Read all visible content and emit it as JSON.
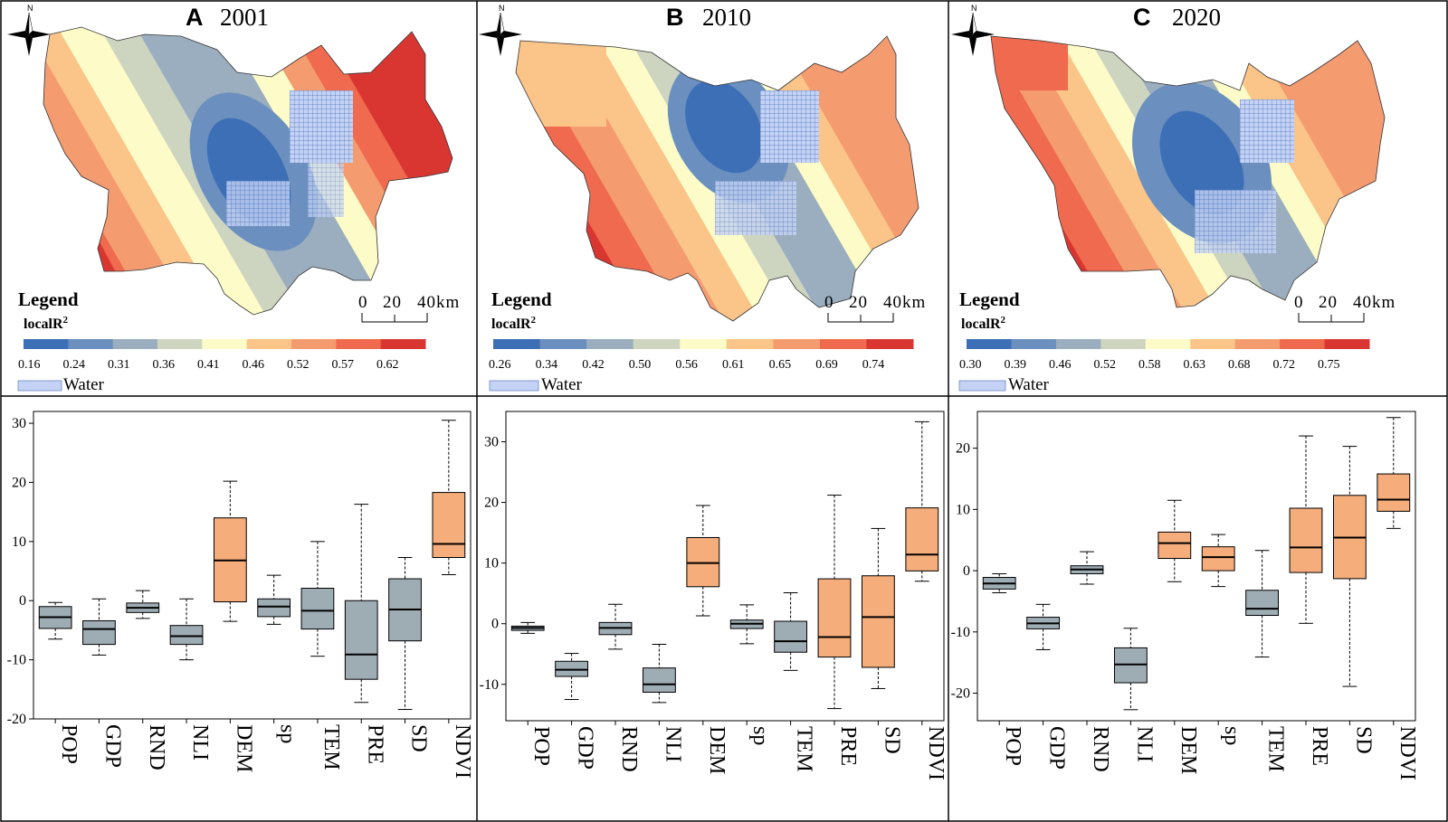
{
  "ramp_colors": [
    "#3d6fb7",
    "#6b8fbe",
    "#9aaebf",
    "#cdd5c0",
    "#fdfcc8",
    "#fbc489",
    "#f59b70",
    "#ef6a4e",
    "#da3631"
  ],
  "water_color": "#c4d3f5",
  "box_colors": {
    "gray": "#9eacb4",
    "orange": "#f6ad7c"
  },
  "panels": [
    {
      "letter": "A",
      "year": "2001",
      "legend": {
        "title": "Legend",
        "sub": "localR",
        "sub_sup": "2",
        "ticks": [
          "0.16",
          "0.24",
          "0.31",
          "0.36",
          "0.41",
          "0.46",
          "0.52",
          "0.57",
          "0.62"
        ],
        "water": "Water"
      },
      "scale": {
        "labels": [
          "0",
          "20",
          "40km"
        ]
      },
      "north": "N"
    },
    {
      "letter": "B",
      "year": "2010",
      "legend": {
        "title": "Legend",
        "sub": "localR",
        "sub_sup": "2",
        "ticks": [
          "0.26",
          "0.34",
          "0.42",
          "0.50",
          "0.56",
          "0.61",
          "0.65",
          "0.69",
          "0.74"
        ],
        "water": "Water"
      },
      "scale": {
        "labels": [
          "0",
          "20",
          "40km"
        ]
      },
      "north": "N"
    },
    {
      "letter": "C",
      "year": "2020",
      "legend": {
        "title": "Legend",
        "sub": "localR",
        "sub_sup": "2",
        "ticks": [
          "0.30",
          "0.39",
          "0.46",
          "0.52",
          "0.58",
          "0.63",
          "0.68",
          "0.72",
          "0.75"
        ],
        "water": "Water"
      },
      "scale": {
        "labels": [
          "0",
          "20",
          "40km"
        ]
      },
      "north": "N"
    }
  ],
  "chart_data": [
    {
      "type": "box",
      "title": "2001",
      "categories": [
        "POP",
        "GDP",
        "RND",
        "NLI",
        "DEM",
        "sp",
        "TEM",
        "PRE",
        "SD",
        "NDVI"
      ],
      "ylim": [
        -20,
        32
      ],
      "yticks": [
        "-20",
        "-10",
        "0",
        "10",
        "20",
        "30"
      ],
      "yticks_values": [
        -20,
        -10,
        0,
        10,
        20,
        30
      ],
      "boxes": [
        {
          "min": -6.5,
          "q1": -4.7,
          "median": -2.8,
          "q3": -1.0,
          "max": -0.3,
          "color": "gray"
        },
        {
          "min": -9.2,
          "q1": -7.4,
          "median": -4.8,
          "q3": -3.4,
          "max": 0.3,
          "color": "gray"
        },
        {
          "min": -3.0,
          "q1": -2.0,
          "median": -1.2,
          "q3": -0.4,
          "max": 1.7,
          "color": "gray"
        },
        {
          "min": -10.0,
          "q1": -7.4,
          "median": -6.0,
          "q3": -4.2,
          "max": 0.3,
          "color": "gray"
        },
        {
          "min": -3.5,
          "q1": -0.2,
          "median": 6.8,
          "q3": 14.0,
          "max": 20.2,
          "color": "orange"
        },
        {
          "min": -4.0,
          "q1": -2.7,
          "median": -1.0,
          "q3": 0.3,
          "max": 4.3,
          "color": "gray"
        },
        {
          "min": -9.4,
          "q1": -4.8,
          "median": -1.7,
          "q3": 2.1,
          "max": 10.0,
          "color": "gray"
        },
        {
          "min": -17.2,
          "q1": -13.3,
          "median": -9.1,
          "q3": 0.0,
          "max": 16.3,
          "color": "gray"
        },
        {
          "min": -18.4,
          "q1": -6.8,
          "median": -1.5,
          "q3": 3.7,
          "max": 7.3,
          "color": "gray"
        },
        {
          "min": 4.4,
          "q1": 7.3,
          "median": 9.6,
          "q3": 18.3,
          "max": 30.5,
          "color": "orange"
        }
      ]
    },
    {
      "type": "box",
      "title": "2010",
      "categories": [
        "POP",
        "GDP",
        "RND",
        "NLI",
        "DEM",
        "sp",
        "TEM",
        "PRE",
        "SD",
        "NDVI"
      ],
      "ylim": [
        -16,
        35
      ],
      "yticks": [
        "-10",
        "0",
        "10",
        "20",
        "30"
      ],
      "yticks_values": [
        -10,
        0,
        10,
        20,
        30
      ],
      "boxes": [
        {
          "min": -1.6,
          "q1": -1.1,
          "median": -0.7,
          "q3": -0.4,
          "max": 0.2,
          "color": "gray"
        },
        {
          "min": -12.5,
          "q1": -8.7,
          "median": -7.6,
          "q3": -6.2,
          "max": -4.9,
          "color": "gray"
        },
        {
          "min": -4.2,
          "q1": -1.8,
          "median": -0.7,
          "q3": 0.2,
          "max": 3.2,
          "color": "gray"
        },
        {
          "min": -13.0,
          "q1": -11.3,
          "median": -10.0,
          "q3": -7.3,
          "max": -3.4,
          "color": "gray"
        },
        {
          "min": 1.3,
          "q1": 6.1,
          "median": 10.0,
          "q3": 14.2,
          "max": 19.5,
          "color": "orange"
        },
        {
          "min": -3.3,
          "q1": -0.8,
          "median": 0.0,
          "q3": 0.6,
          "max": 3.1,
          "color": "gray"
        },
        {
          "min": -7.7,
          "q1": -4.7,
          "median": -2.9,
          "q3": 0.4,
          "max": 5.1,
          "color": "gray"
        },
        {
          "min": -14.0,
          "q1": -5.5,
          "median": -2.2,
          "q3": 7.4,
          "max": 21.2,
          "color": "orange"
        },
        {
          "min": -10.7,
          "q1": -7.2,
          "median": 1.1,
          "q3": 7.9,
          "max": 15.7,
          "color": "orange"
        },
        {
          "min": 7.0,
          "q1": 8.7,
          "median": 11.4,
          "q3": 19.1,
          "max": 33.3,
          "color": "orange"
        }
      ]
    },
    {
      "type": "box",
      "title": "2020",
      "categories": [
        "POP",
        "GDP",
        "RND",
        "NLI",
        "DEM",
        "sp",
        "TEM",
        "PRE",
        "SD",
        "NDVI"
      ],
      "ylim": [
        -24.5,
        26
      ],
      "yticks": [
        "-20",
        "-10",
        "0",
        "10",
        "20"
      ],
      "yticks_values": [
        -20,
        -10,
        0,
        10,
        20
      ],
      "boxes": [
        {
          "min": -3.6,
          "q1": -3.0,
          "median": -2.1,
          "q3": -1.1,
          "max": -0.5,
          "color": "gray"
        },
        {
          "min": -12.9,
          "q1": -9.5,
          "median": -8.6,
          "q3": -7.6,
          "max": -5.5,
          "color": "gray"
        },
        {
          "min": -2.2,
          "q1": -0.5,
          "median": 0.2,
          "q3": 0.8,
          "max": 3.1,
          "color": "gray"
        },
        {
          "min": -22.7,
          "q1": -18.3,
          "median": -15.3,
          "q3": -12.6,
          "max": -9.4,
          "color": "gray"
        },
        {
          "min": -1.8,
          "q1": 2.0,
          "median": 4.5,
          "q3": 6.3,
          "max": 11.5,
          "color": "orange"
        },
        {
          "min": -2.6,
          "q1": 0.0,
          "median": 2.2,
          "q3": 3.9,
          "max": 5.9,
          "color": "orange"
        },
        {
          "min": -14.1,
          "q1": -7.3,
          "median": -6.2,
          "q3": -3.2,
          "max": 3.3,
          "color": "gray"
        },
        {
          "min": -8.6,
          "q1": -0.3,
          "median": 3.8,
          "q3": 10.2,
          "max": 22.0,
          "color": "orange"
        },
        {
          "min": -18.9,
          "q1": -1.3,
          "median": 5.4,
          "q3": 12.3,
          "max": 20.3,
          "color": "orange"
        },
        {
          "min": 6.9,
          "q1": 9.7,
          "median": 11.6,
          "q3": 15.8,
          "max": 25.0,
          "color": "orange"
        }
      ]
    }
  ]
}
